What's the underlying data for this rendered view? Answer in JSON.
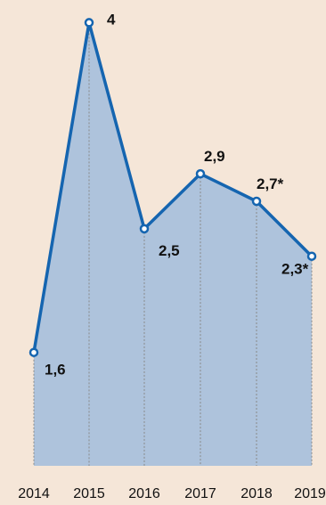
{
  "chart_data": {
    "type": "area",
    "x": [
      "2014",
      "2015",
      "2016",
      "2017",
      "2018",
      "2019"
    ],
    "values": [
      1.6,
      4,
      2.5,
      2.9,
      2.7,
      2.3
    ],
    "labels": [
      "1,6",
      "4",
      "2,5",
      "2,9",
      "2,7*",
      "2,3*"
    ],
    "ylim": [
      0.6,
      4.1
    ],
    "colors": {
      "background": "#f5e6d8",
      "area": "#aec3dc",
      "line": "#1565b0",
      "marker_fill": "#ffffff",
      "dashed": "#888888"
    }
  }
}
